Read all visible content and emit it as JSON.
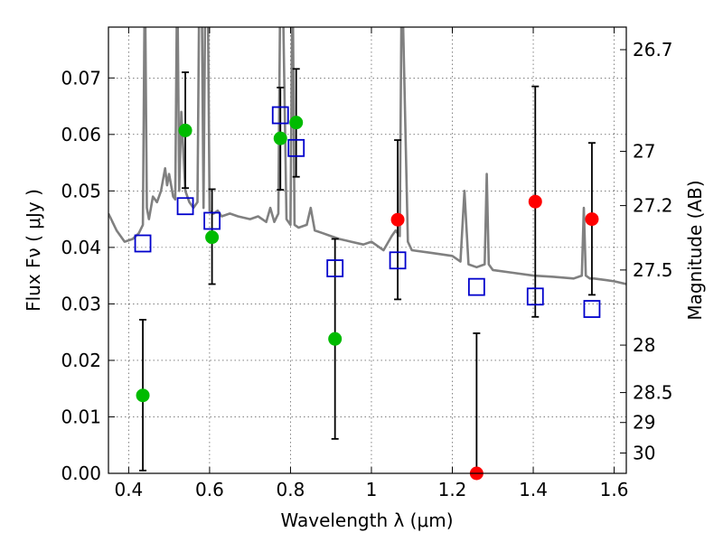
{
  "chart_data": {
    "type": "scatter",
    "xlabel": "Wavelength  λ (μm)",
    "ylabel": "Flux  Fν  ( μJy )",
    "ylabel_right": "Magnitude (AB)",
    "xlim": [
      0.35,
      1.63
    ],
    "ylim": [
      0.0,
      0.079
    ],
    "x_ticks": [
      0.4,
      0.6,
      0.8,
      1.0,
      1.2,
      1.4,
      1.6
    ],
    "x_tick_labels": [
      "0.4",
      "0.6",
      "0.8",
      "1",
      "1.2",
      "1.4",
      "1.6"
    ],
    "y_ticks": [
      0.0,
      0.01,
      0.02,
      0.03,
      0.04,
      0.05,
      0.06,
      0.07
    ],
    "y_tick_labels": [
      "0.00",
      "0.01",
      "0.02",
      "0.03",
      "0.04",
      "0.05",
      "0.06",
      "0.07"
    ],
    "right_ticks": [
      {
        "label": "26.7",
        "flux": 0.075
      },
      {
        "label": "27",
        "flux": 0.057
      },
      {
        "label": "27.2",
        "flux": 0.0474
      },
      {
        "label": "27.5",
        "flux": 0.036
      },
      {
        "label": "28",
        "flux": 0.0227
      },
      {
        "label": "28.5",
        "flux": 0.0143
      },
      {
        "label": "29",
        "flux": 0.009
      },
      {
        "label": "30",
        "flux": 0.0036
      }
    ],
    "grid": true,
    "series": [
      {
        "marker": "circle",
        "color": "#00bb00",
        "points": [
          {
            "x": 0.435,
            "y": 0.0138,
            "ylo": 0.0005,
            "yhi": 0.0272
          },
          {
            "x": 0.54,
            "y": 0.0607,
            "ylo": 0.0505,
            "yhi": 0.071
          },
          {
            "x": 0.606,
            "y": 0.0418,
            "ylo": 0.0335,
            "yhi": 0.0503
          },
          {
            "x": 0.775,
            "y": 0.0593,
            "ylo": 0.0502,
            "yhi": 0.0683
          },
          {
            "x": 0.814,
            "y": 0.0621,
            "ylo": 0.0525,
            "yhi": 0.0716
          },
          {
            "x": 0.91,
            "y": 0.0238,
            "ylo": 0.0061,
            "yhi": 0.0415
          }
        ]
      },
      {
        "marker": "circle",
        "color": "#ff0000",
        "points": [
          {
            "x": 1.065,
            "y": 0.0449,
            "ylo": 0.0308,
            "yhi": 0.059
          },
          {
            "x": 1.26,
            "y": 0.0,
            "ylo": 0.0,
            "yhi": 0.0248
          },
          {
            "x": 1.405,
            "y": 0.0481,
            "ylo": 0.0277,
            "yhi": 0.0685
          },
          {
            "x": 1.545,
            "y": 0.045,
            "ylo": 0.0316,
            "yhi": 0.0585
          }
        ]
      },
      {
        "marker": "square-open",
        "color": "#0000cc",
        "points": [
          {
            "x": 0.435,
            "y": 0.0407
          },
          {
            "x": 0.54,
            "y": 0.0473
          },
          {
            "x": 0.606,
            "y": 0.0447
          },
          {
            "x": 0.775,
            "y": 0.0634
          },
          {
            "x": 0.814,
            "y": 0.0576
          },
          {
            "x": 0.91,
            "y": 0.0363
          },
          {
            "x": 1.065,
            "y": 0.0377
          },
          {
            "x": 1.26,
            "y": 0.033
          },
          {
            "x": 1.405,
            "y": 0.0313
          },
          {
            "x": 1.545,
            "y": 0.0291
          }
        ]
      }
    ],
    "model_spectrum": {
      "color": "#808080",
      "x": [
        0.35,
        0.37,
        0.39,
        0.41,
        0.425,
        0.435,
        0.44,
        0.445,
        0.45,
        0.46,
        0.47,
        0.48,
        0.485,
        0.49,
        0.495,
        0.5,
        0.51,
        0.515,
        0.52,
        0.525,
        0.53,
        0.54,
        0.55,
        0.56,
        0.57,
        0.575,
        0.58,
        0.585,
        0.59,
        0.595,
        0.6,
        0.61,
        0.62,
        0.63,
        0.65,
        0.67,
        0.7,
        0.72,
        0.74,
        0.75,
        0.76,
        0.77,
        0.775,
        0.78,
        0.79,
        0.8,
        0.805,
        0.81,
        0.82,
        0.84,
        0.85,
        0.86,
        0.88,
        0.9,
        0.92,
        0.95,
        0.98,
        1.0,
        1.03,
        1.05,
        1.06,
        1.07,
        1.075,
        1.09,
        1.1,
        1.15,
        1.2,
        1.22,
        1.23,
        1.24,
        1.26,
        1.28,
        1.285,
        1.29,
        1.3,
        1.35,
        1.4,
        1.45,
        1.5,
        1.52,
        1.525,
        1.53,
        1.54,
        1.55,
        1.58,
        1.6,
        1.63
      ],
      "y": [
        0.046,
        0.043,
        0.041,
        0.0415,
        0.0425,
        0.044,
        0.09,
        0.047,
        0.045,
        0.049,
        0.048,
        0.05,
        0.052,
        0.054,
        0.051,
        0.053,
        0.049,
        0.0485,
        0.09,
        0.05,
        0.064,
        0.05,
        0.048,
        0.047,
        0.048,
        0.09,
        0.09,
        0.047,
        0.09,
        0.09,
        0.0465,
        0.046,
        0.0465,
        0.0455,
        0.046,
        0.0455,
        0.045,
        0.0455,
        0.0445,
        0.047,
        0.0445,
        0.046,
        0.09,
        0.09,
        0.045,
        0.044,
        0.09,
        0.044,
        0.0435,
        0.044,
        0.047,
        0.043,
        0.0425,
        0.042,
        0.0415,
        0.041,
        0.0405,
        0.041,
        0.0395,
        0.042,
        0.043,
        0.042,
        0.09,
        0.041,
        0.0395,
        0.039,
        0.0385,
        0.0375,
        0.05,
        0.037,
        0.0365,
        0.037,
        0.053,
        0.037,
        0.036,
        0.0355,
        0.035,
        0.0348,
        0.0345,
        0.035,
        0.047,
        0.035,
        0.0345,
        0.0345,
        0.0342,
        0.034,
        0.0335
      ]
    }
  }
}
